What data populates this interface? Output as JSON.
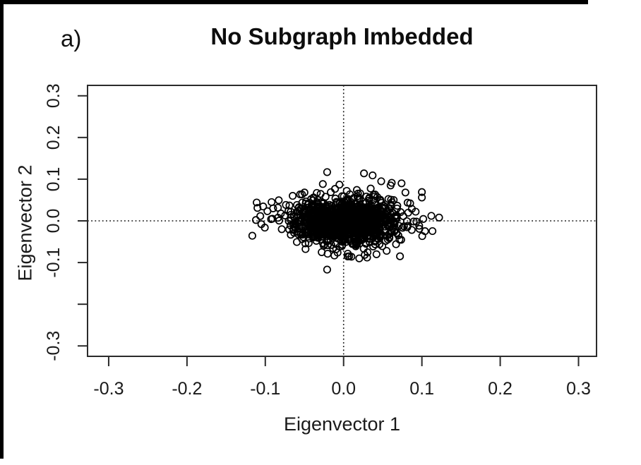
{
  "chart_data": {
    "type": "scatter",
    "panel_label": "a)",
    "title": "No Subgraph Imbedded",
    "xlabel": "Eigenvector 1",
    "ylabel": "Eigenvector 2",
    "xlim": [
      -0.327,
      0.323
    ],
    "ylim": [
      -0.325,
      0.325
    ],
    "x_ticks": [
      -0.3,
      -0.2,
      -0.1,
      0,
      0.1,
      0.2,
      0.3
    ],
    "x_tick_labels": [
      "-0.3",
      "-0.2",
      "-0.1",
      "0.0",
      "0.1",
      "0.2",
      "0.3"
    ],
    "y_ticks": [
      0.3,
      0.2,
      0.1,
      0,
      -0.1,
      -0.2,
      -0.3
    ],
    "y_tick_labels": [
      "0.3",
      "0.2",
      "0.1",
      "0.0",
      "-0.1",
      "",
      "-0.3"
    ],
    "grid": false,
    "legend": false,
    "reference_lines": [
      {
        "axis": "h",
        "value": 0,
        "style": "dotted"
      },
      {
        "axis": "v",
        "value": 0,
        "style": "dotted"
      }
    ],
    "marker": {
      "shape": "open-circle",
      "radius_px": 4.7,
      "stroke_px": 1.7,
      "color": "#000000"
    },
    "cluster": {
      "description": "single dense gaussian cloud of open circles centered at the origin, solid black from overplotting; spans roughly x in [-0.11, 0.125], y in [-0.12, 0.12]",
      "n": 1150,
      "center": [
        0.002,
        0.0
      ],
      "sd": [
        0.033,
        0.027
      ],
      "seed": 7
    },
    "outlier_points": [
      [
        -0.021,
        0.117
      ],
      [
        0.026,
        0.114
      ],
      [
        0.037,
        0.109
      ],
      [
        0.048,
        0.095
      ],
      [
        0.06,
        0.085
      ],
      [
        0.074,
        0.09
      ],
      [
        0.079,
        0.068
      ],
      [
        0.1,
        0.069
      ],
      [
        0.1,
        0.056
      ],
      [
        0.085,
        0.042
      ],
      [
        0.092,
        0.022
      ],
      [
        0.112,
        0.012
      ],
      [
        0.122,
        0.008
      ],
      [
        -0.111,
        0.044
      ],
      [
        -0.11,
        0.031
      ],
      [
        -0.112,
        0.002
      ],
      [
        -0.105,
        -0.008
      ],
      [
        -0.092,
        0.045
      ],
      [
        -0.09,
        0.03
      ],
      [
        -0.091,
        0.005
      ],
      [
        -0.079,
        -0.02
      ],
      [
        -0.065,
        0.06
      ],
      [
        -0.05,
        0.068
      ],
      [
        -0.021,
        -0.117
      ],
      [
        0.01,
        -0.086
      ],
      [
        0.02,
        -0.09
      ],
      [
        0.03,
        -0.088
      ],
      [
        0.042,
        -0.08
      ],
      [
        0.055,
        -0.072
      ],
      [
        0.067,
        -0.056
      ],
      [
        0.072,
        -0.085
      ]
    ]
  },
  "colors": {
    "background": "#ffffff",
    "axis": "#2b2b2b",
    "text": "#1a1a1a",
    "points": "#000000",
    "scan_edge": "#000000"
  }
}
